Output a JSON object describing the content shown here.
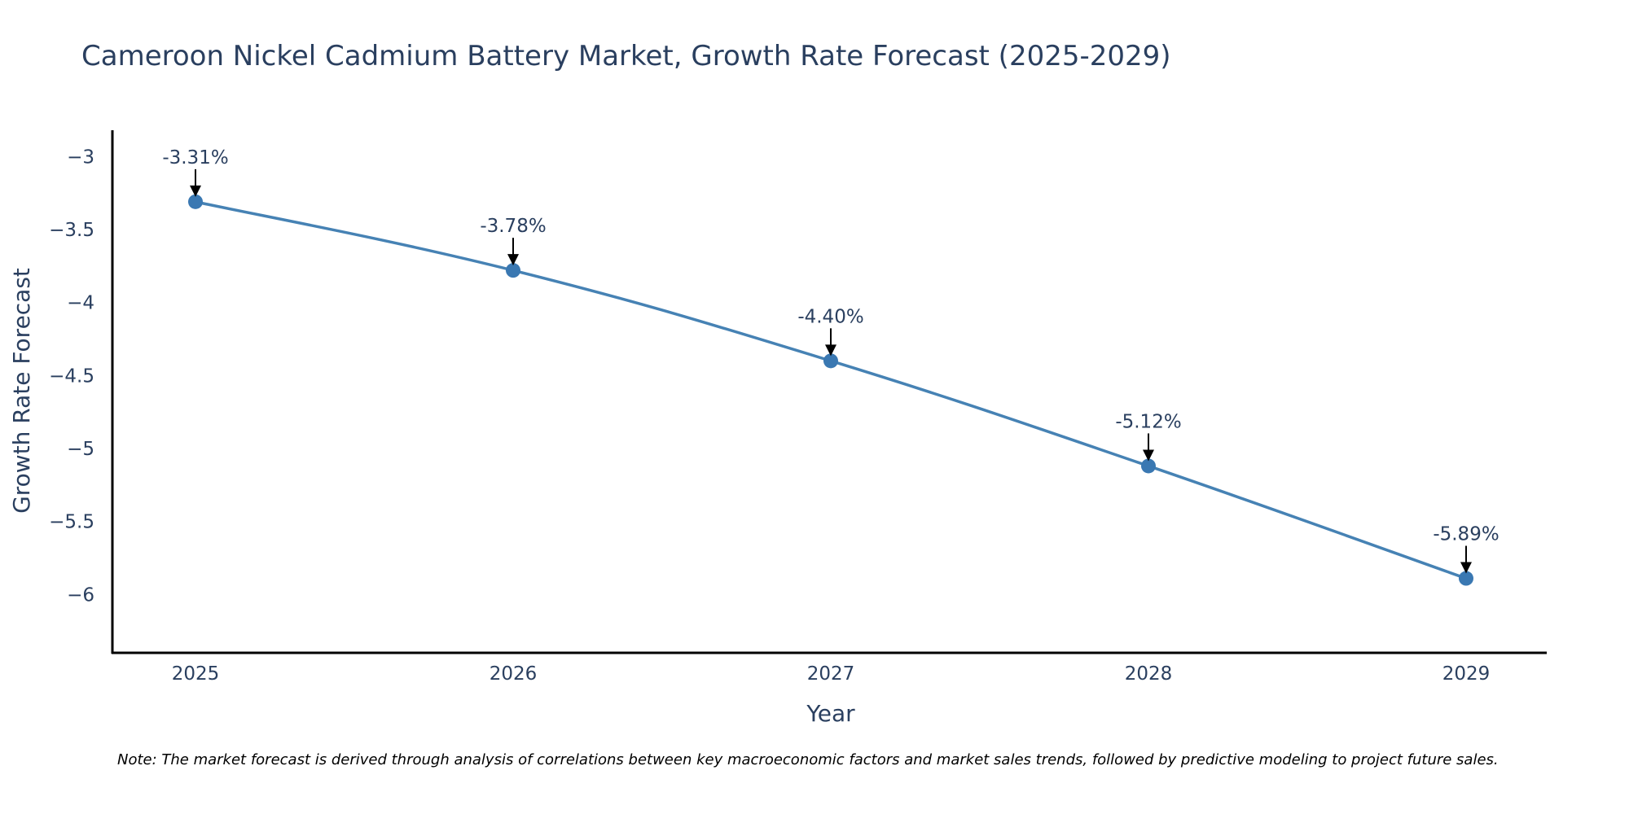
{
  "chart_data": {
    "type": "line",
    "title": "Cameroon Nickel Cadmium Battery Market, Growth Rate Forecast (2025-2029)",
    "xlabel": "Year",
    "ylabel": "Growth Rate Forecast",
    "categories": [
      "2025",
      "2026",
      "2027",
      "2028",
      "2029"
    ],
    "series": [
      {
        "name": "Growth Rate Forecast",
        "values": [
          -3.31,
          -3.78,
          -4.4,
          -5.12,
          -5.89
        ]
      }
    ],
    "data_labels": [
      "-3.31%",
      "-3.78%",
      "-4.40%",
      "-5.12%",
      "-5.89%"
    ],
    "y_ticks": [
      -3,
      -3.5,
      -4,
      -4.5,
      -5,
      -5.5,
      -6
    ],
    "y_tick_labels": [
      "−3",
      "−3.5",
      "−4",
      "−4.5",
      "−5",
      "−5.5",
      "−6"
    ],
    "ylim": [
      -6.4,
      -2.82
    ],
    "grid": false,
    "legend": "none",
    "line_color": "#4682b4",
    "marker_color": "#3a78b2",
    "note": "Note: The market forecast is derived through analysis of correlations between key macroeconomic factors and market sales trends, followed by predictive modeling to project future sales."
  }
}
